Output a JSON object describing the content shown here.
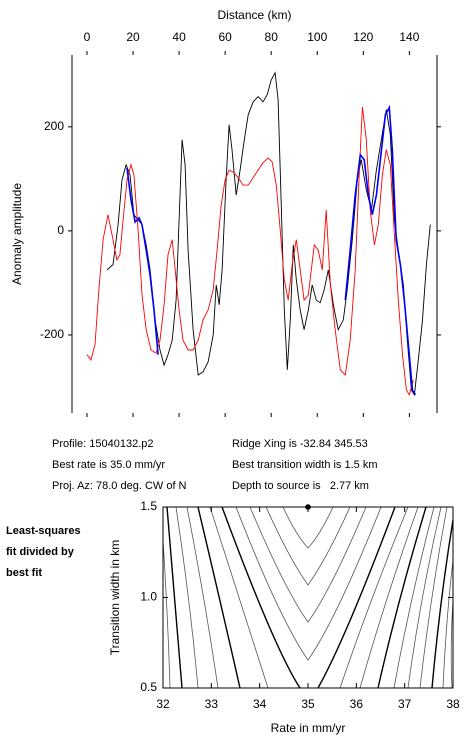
{
  "chart_data": [
    {
      "type": "line",
      "xlabel": "Distance (km)",
      "ylabel": "Anomaly amplitude",
      "xlim": [
        -6.5,
        152
      ],
      "xticks": [
        0,
        20,
        40,
        60,
        80,
        100,
        120,
        140
      ],
      "ylim": [
        -350,
        338
      ],
      "yticks": [
        -200,
        0,
        200
      ],
      "grid": false,
      "series": [
        {
          "color": "#000000",
          "x": [
            8.7,
            11.3,
            13.5,
            15.2,
            17.0,
            18.7,
            20.4,
            22.2,
            23.9,
            25.7,
            27.4,
            29.6,
            31.7,
            33.5,
            35.2,
            37.0,
            38.7,
            40.0,
            41.3,
            42.6,
            43.9,
            46.1,
            48.3,
            50.4,
            52.6,
            54.8,
            56.1,
            57.4,
            58.7,
            60.4,
            61.7,
            63.0,
            64.8,
            66.5,
            68.3,
            70.0,
            72.2,
            74.3,
            76.5,
            78.3,
            80.0,
            81.7,
            83.0,
            84.3,
            85.7,
            87.0,
            88.3,
            89.6,
            90.9,
            92.6,
            94.3,
            96.1,
            97.8,
            99.6,
            101.3,
            103.0,
            104.8,
            107.0,
            109.1,
            111.3,
            113.0,
            115.2,
            117.4,
            119.1,
            121.3,
            123.5,
            125.7,
            127.8,
            130.0,
            131.7,
            133.5,
            135.2,
            137.4,
            139.1,
            140.9,
            142.2,
            143.9,
            145.7,
            147.4,
            149.1
          ],
          "values": [
            -75,
            -65,
            12,
            98,
            127,
            108,
            31,
            21,
            12,
            -27,
            -75,
            -171,
            -229,
            -258,
            -238,
            -210,
            -133,
            21,
            175,
            127,
            -37,
            -190,
            -277,
            -271,
            -252,
            -200,
            -104,
            -142,
            -75,
            98,
            204,
            156,
            69,
            117,
            175,
            223,
            248,
            258,
            248,
            262,
            290,
            304,
            252,
            60,
            -152,
            -267,
            -171,
            -27,
            -94,
            -152,
            -190,
            -152,
            -104,
            -133,
            -138,
            -113,
            -75,
            -142,
            -190,
            -171,
            -113,
            -17,
            98,
            137,
            79,
            40,
            117,
            175,
            233,
            185,
            21,
            -37,
            -104,
            -210,
            -306,
            -315,
            -248,
            -171,
            -65,
            12
          ]
        },
        {
          "color": "#ff0000",
          "x": [
            0.0,
            1.7,
            3.5,
            5.2,
            7.0,
            9.1,
            10.9,
            13.0,
            14.3,
            15.7,
            17.4,
            19.1,
            20.4,
            22.2,
            23.9,
            25.7,
            27.8,
            30.0,
            31.7,
            33.5,
            35.2,
            37.0,
            38.3,
            40.0,
            41.7,
            43.9,
            46.1,
            48.3,
            50.4,
            52.6,
            54.8,
            56.5,
            58.3,
            60.0,
            61.7,
            63.5,
            65.7,
            67.8,
            70.0,
            72.2,
            74.3,
            76.5,
            78.7,
            80.4,
            82.2,
            83.9,
            85.7,
            87.4,
            89.1,
            90.9,
            92.6,
            94.3,
            96.1,
            97.4,
            98.7,
            100.4,
            102.2,
            103.9,
            105.7,
            107.8,
            110.0,
            112.2,
            114.3,
            116.5,
            118.3,
            119.6,
            121.3,
            123.0,
            124.8,
            126.5,
            128.3,
            130.0,
            131.7,
            133.5,
            135.2,
            137.0,
            138.7,
            140.0,
            141.7
          ],
          "values": [
            -238,
            -248,
            -219,
            -113,
            -17,
            31,
            -8,
            -56,
            -46,
            21,
            98,
            127,
            108,
            2,
            -123,
            -190,
            -229,
            -235,
            -210,
            -142,
            -46,
            -17,
            -75,
            -152,
            -210,
            -229,
            -229,
            -210,
            -171,
            -152,
            -113,
            -37,
            50,
            98,
            117,
            113,
            102,
            88,
            88,
            102,
            117,
            131,
            140,
            133,
            88,
            2,
            -94,
            -133,
            -65,
            -17,
            -75,
            -133,
            -123,
            -75,
            -27,
            -37,
            -75,
            40,
            -104,
            -190,
            -267,
            -277,
            -210,
            -75,
            117,
            238,
            175,
            40,
            -27,
            12,
            108,
            156,
            127,
            -8,
            -133,
            -238,
            -306,
            -315,
            -287
          ]
        },
        {
          "color": "#0000ff",
          "x": [
            17.4,
            19.1,
            20.9,
            22.6,
            23.9,
            25.7,
            27.4,
            29.1,
            30.9,
            null,
            112.2,
            114.3,
            116.5,
            118.7,
            120.4,
            122.2,
            123.9,
            125.7,
            127.4,
            129.6,
            131.3,
            132.6,
            134.3,
            136.1,
            137.8,
            139.6,
            141.3,
            142.6
          ],
          "values": [
            121,
            60,
            17,
            25,
            12,
            -37,
            -85,
            -152,
            -238,
            null,
            -133,
            -37,
            69,
            146,
            137,
            69,
            31,
            69,
            137,
            223,
            237,
            156,
            -17,
            -65,
            -133,
            -219,
            -306,
            -315
          ]
        }
      ]
    },
    {
      "type": "contour",
      "xlabel": "Rate in mm/yr",
      "ylabel": "Transition width in km",
      "xlim": [
        32,
        38
      ],
      "xticks": [
        32,
        33,
        34,
        35,
        36,
        37,
        38
      ],
      "ylim": [
        0.5,
        1.5
      ],
      "yticks": [
        0.5,
        {
          "value": 1.0,
          "label": "1.0"
        },
        1.5
      ],
      "x": [
        35.0
      ],
      "values": [
        1.5
      ],
      "color": "#000000",
      "annotations": [
        "Profile: 15040132.p2",
        "Ridge Xing is -32.84 345.53",
        "Best rate is 35.0 mm/yr",
        "Best transition width is 1.5 km",
        "Proj. Az: 78.0 deg. CW of N",
        "Depth to source is   2.77 km"
      ],
      "side_label": [
        "Least-squares",
        "fit divided by",
        "best fit"
      ]
    }
  ]
}
